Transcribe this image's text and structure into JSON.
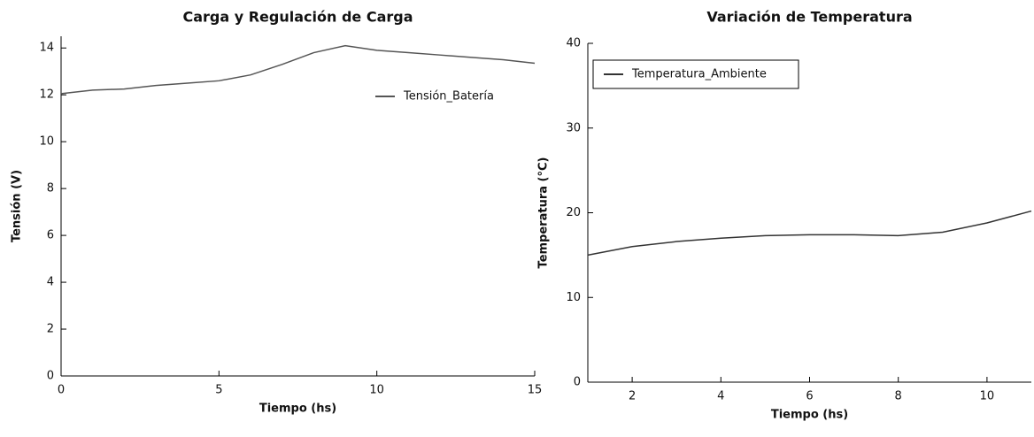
{
  "chart_data": [
    {
      "type": "line",
      "title": "Carga y Regulación de Carga",
      "x_label": "Tiempo (hs)",
      "y_label": "Tensión (V)",
      "x": [
        0,
        1,
        2,
        3,
        4,
        5,
        6,
        7,
        8,
        9,
        10,
        11,
        12,
        13,
        14,
        15
      ],
      "series": [
        {
          "name": "Tensión_Batería",
          "color": "#555555",
          "values": [
            12.05,
            12.2,
            12.25,
            12.4,
            12.5,
            12.6,
            12.85,
            13.3,
            13.8,
            14.1,
            13.9,
            13.8,
            13.7,
            13.6,
            13.5,
            13.35
          ]
        }
      ],
      "xlim": [
        0,
        15
      ],
      "xticks": [
        0,
        5,
        10,
        15
      ],
      "ylim": [
        0,
        14.5
      ],
      "yticks": [
        0,
        2,
        4,
        6,
        8,
        10,
        12,
        14
      ],
      "legend": "right",
      "legend_box": false
    },
    {
      "type": "line",
      "title": "Variación de Temperatura",
      "x_label": "Tiempo (hs)",
      "y_label": "Temperatura (°C)",
      "x": [
        1,
        2,
        3,
        4,
        5,
        6,
        7,
        8,
        9,
        10,
        11
      ],
      "series": [
        {
          "name": "Temperatura_Ambiente",
          "color": "#333333",
          "values": [
            15,
            16,
            16.6,
            17,
            17.3,
            17.4,
            17.4,
            17.3,
            17.7,
            18.8,
            20.2
          ]
        }
      ],
      "xlim": [
        1,
        11
      ],
      "xticks": [
        2,
        4,
        6,
        8,
        10
      ],
      "ylim": [
        0,
        40
      ],
      "yticks": [
        0,
        10,
        20,
        30,
        40
      ],
      "legend": "upper left",
      "legend_box": true
    }
  ]
}
